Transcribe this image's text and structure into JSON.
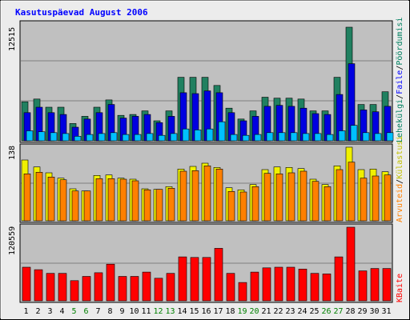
{
  "title": "Kasutuspäevad August 2006",
  "colors": {
    "title": "#0000ff",
    "frame_bg": "#ececec",
    "plot_bg": "#c0c0c0",
    "grid": "#808080",
    "weekday_label": "#000000",
    "weekend_label": "#008000",
    "hits": "#208060",
    "files": "#0000e0",
    "pages": "#00c0ff",
    "visits": "#f0f000",
    "sites": "#ff8000",
    "kbytes": "#ff0000",
    "label_orange": "#ff8000",
    "label_yellow": "#c0c000",
    "label_blue": "#0000ff",
    "label_green": "#008060",
    "label_red": "#ff0000",
    "separator": "#000000"
  },
  "chart_data": [
    {
      "type": "bar",
      "panel": "hits-files-pages",
      "categories": [
        "1",
        "2",
        "3",
        "4",
        "5",
        "6",
        "7",
        "8",
        "9",
        "10",
        "11",
        "12",
        "13",
        "14",
        "15",
        "16",
        "17",
        "18",
        "19",
        "20",
        "21",
        "22",
        "23",
        "24",
        "25",
        "26",
        "27",
        "28",
        "29",
        "30",
        "31"
      ],
      "weekend_days": [
        "5",
        "6",
        "12",
        "13",
        "19",
        "20",
        "26",
        "27"
      ],
      "ylim": [
        0,
        12515
      ],
      "ytick_label": "12515",
      "series": [
        {
          "name": "Pöördumisi",
          "color_key": "hits",
          "values": [
            4300,
            4600,
            3700,
            3700,
            1900,
            2700,
            3700,
            4500,
            2800,
            2900,
            3300,
            2200,
            3300,
            7000,
            7000,
            7000,
            6100,
            3600,
            2400,
            3300,
            4800,
            4700,
            4700,
            4600,
            3300,
            3300,
            7000,
            12515,
            4000,
            4000,
            5400
          ]
        },
        {
          "name": "Faile",
          "color_key": "files",
          "values": [
            3100,
            3700,
            3100,
            2900,
            1500,
            2400,
            3100,
            4000,
            2500,
            2700,
            2900,
            2000,
            2700,
            5300,
            5200,
            5500,
            5300,
            3100,
            2200,
            2700,
            3800,
            3900,
            3800,
            3600,
            3000,
            2900,
            5100,
            8500,
            3400,
            3200,
            3800
          ]
        },
        {
          "name": "Lehekülgi",
          "color_key": "pages",
          "values": [
            1100,
            1000,
            900,
            800,
            500,
            700,
            800,
            900,
            700,
            700,
            800,
            600,
            800,
            1300,
            1200,
            1300,
            2100,
            700,
            600,
            700,
            900,
            900,
            900,
            800,
            800,
            700,
            1100,
            1700,
            900,
            800,
            900
          ]
        }
      ]
    },
    {
      "type": "bar",
      "panel": "visits-sites",
      "categories": [
        "1",
        "2",
        "3",
        "4",
        "5",
        "6",
        "7",
        "8",
        "9",
        "10",
        "11",
        "12",
        "13",
        "14",
        "15",
        "16",
        "17",
        "18",
        "19",
        "20",
        "21",
        "22",
        "23",
        "24",
        "25",
        "26",
        "27",
        "28",
        "29",
        "30",
        "31"
      ],
      "ylim": [
        0,
        138
      ],
      "ytick_label": "138",
      "series": [
        {
          "name": "Külastusi",
          "color_key": "visits",
          "values": [
            114,
            101,
            90,
            80,
            60,
            56,
            85,
            86,
            80,
            78,
            60,
            59,
            64,
            97,
            102,
            108,
            100,
            62,
            58,
            68,
            96,
            101,
            100,
            98,
            78,
            68,
            103,
            138,
            96,
            97,
            92
          ]
        },
        {
          "name": "Arvuteid",
          "color_key": "sites",
          "values": [
            88,
            91,
            82,
            77,
            56,
            56,
            79,
            79,
            78,
            75,
            58,
            59,
            61,
            93,
            94,
            103,
            97,
            55,
            54,
            64,
            89,
            88,
            90,
            93,
            74,
            64,
            96,
            110,
            80,
            84,
            86
          ]
        }
      ]
    },
    {
      "type": "bar",
      "panel": "kbytes",
      "categories": [
        "1",
        "2",
        "3",
        "4",
        "5",
        "6",
        "7",
        "8",
        "9",
        "10",
        "11",
        "12",
        "13",
        "14",
        "15",
        "16",
        "17",
        "18",
        "19",
        "20",
        "21",
        "22",
        "23",
        "24",
        "25",
        "26",
        "27",
        "28",
        "29",
        "30",
        "31"
      ],
      "ylim": [
        0,
        120559
      ],
      "ytick_label": "120559",
      "series": [
        {
          "name": "KBaite",
          "color_key": "kbytes",
          "values": [
            55000,
            51000,
            45000,
            45000,
            33000,
            40000,
            46000,
            60000,
            40000,
            40000,
            47000,
            37000,
            45000,
            72000,
            71000,
            71000,
            86000,
            45000,
            30000,
            47000,
            54000,
            55000,
            55000,
            52000,
            45000,
            44000,
            72000,
            120559,
            49000,
            53000,
            53000
          ]
        }
      ]
    }
  ],
  "legend": {
    "top": {
      "parts": [
        "Pöördumisi",
        "/",
        "Faile",
        "/",
        "Lehekülgi"
      ]
    },
    "middle": {
      "parts": [
        "Arvuteid",
        "/",
        "Külastusi"
      ]
    },
    "bottom": {
      "parts": [
        "KBaite"
      ]
    }
  }
}
